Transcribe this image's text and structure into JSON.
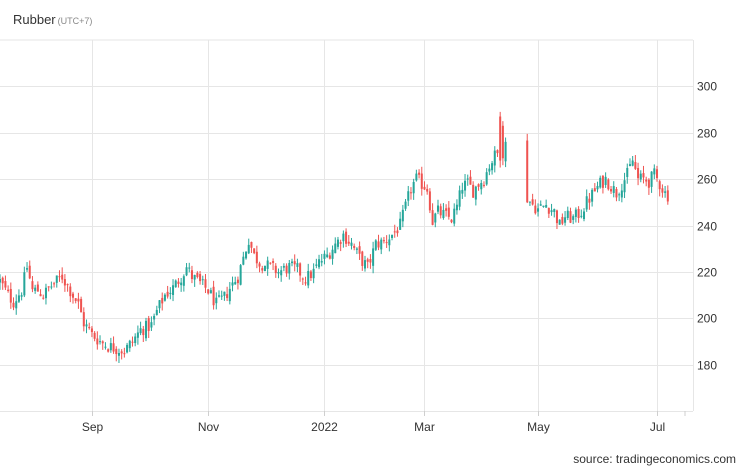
{
  "header": {
    "title": "Rubber",
    "timezone": "(UTC+7)"
  },
  "footer": {
    "source": "source: tradingeconomics.com"
  },
  "colors": {
    "up": "#26a69a",
    "down": "#ef5350",
    "grid": "#e6e6e6",
    "text": "#333333"
  },
  "chart_data": {
    "type": "candlestick",
    "title": "Rubber",
    "ylim": [
      160,
      320
    ],
    "y_ticks": [
      180,
      200,
      220,
      240,
      260,
      280,
      300
    ],
    "x_ticks": [
      {
        "label": "Sep",
        "idx": 34
      },
      {
        "label": "Nov",
        "idx": 77
      },
      {
        "label": "2022",
        "idx": 120
      },
      {
        "label": "Mar",
        "idx": 157
      },
      {
        "label": "May",
        "idx": 199
      },
      {
        "label": "Jul",
        "idx": 243
      }
    ],
    "n": 256,
    "gaps": [
      [
        187,
        195
      ]
    ],
    "anchors": [
      [
        0,
        216
      ],
      [
        3,
        210
      ],
      [
        5,
        207
      ],
      [
        8,
        212
      ],
      [
        10,
        222
      ],
      [
        12,
        212
      ],
      [
        14,
        212
      ],
      [
        16,
        210
      ],
      [
        19,
        214
      ],
      [
        23,
        218
      ],
      [
        27,
        210
      ],
      [
        29,
        206
      ],
      [
        31,
        198
      ],
      [
        34,
        193
      ],
      [
        37,
        190
      ],
      [
        40,
        188
      ],
      [
        43,
        187
      ],
      [
        46,
        186
      ],
      [
        49,
        190
      ],
      [
        52,
        195
      ],
      [
        56,
        197
      ],
      [
        58,
        203
      ],
      [
        61,
        210
      ],
      [
        64,
        213
      ],
      [
        67,
        218
      ],
      [
        69,
        222
      ],
      [
        71,
        218
      ],
      [
        73,
        216
      ],
      [
        77,
        212
      ],
      [
        80,
        206
      ],
      [
        83,
        209
      ],
      [
        85,
        213
      ],
      [
        88,
        218
      ],
      [
        90,
        226
      ],
      [
        92,
        234
      ],
      [
        94,
        227
      ],
      [
        96,
        224
      ],
      [
        100,
        222
      ],
      [
        103,
        220
      ],
      [
        107,
        222
      ],
      [
        110,
        221
      ],
      [
        113,
        217
      ],
      [
        116,
        220
      ],
      [
        118,
        224
      ],
      [
        121,
        227
      ],
      [
        124,
        232
      ],
      [
        127,
        236
      ],
      [
        130,
        232
      ],
      [
        133,
        226
      ],
      [
        136,
        222
      ],
      [
        139,
        232
      ],
      [
        142,
        233
      ],
      [
        145,
        236
      ],
      [
        148,
        240
      ],
      [
        150,
        248
      ],
      [
        152,
        256
      ],
      [
        154,
        260
      ],
      [
        156,
        258
      ],
      [
        158,
        256
      ],
      [
        160,
        242
      ],
      [
        162,
        246
      ],
      [
        165,
        244
      ],
      [
        167,
        243
      ],
      [
        169,
        248
      ],
      [
        171,
        257
      ],
      [
        173,
        258
      ],
      [
        175,
        255
      ],
      [
        177,
        258
      ],
      [
        179,
        260
      ],
      [
        181,
        266
      ],
      [
        183,
        270
      ],
      [
        185,
        272
      ],
      [
        186,
        275
      ],
      [
        187,
        275
      ],
      [
        190,
        268
      ],
      [
        195,
        252
      ],
      [
        197,
        249
      ],
      [
        199,
        247
      ],
      [
        202,
        249
      ],
      [
        205,
        246
      ],
      [
        207,
        240
      ],
      [
        209,
        244
      ],
      [
        212,
        243
      ],
      [
        215,
        246
      ],
      [
        217,
        250
      ],
      [
        220,
        255
      ],
      [
        222,
        258
      ],
      [
        224,
        260
      ],
      [
        226,
        257
      ],
      [
        228,
        254
      ],
      [
        230,
        258
      ],
      [
        232,
        262
      ],
      [
        234,
        268
      ],
      [
        236,
        260
      ],
      [
        238,
        260
      ],
      [
        240,
        259
      ],
      [
        242,
        262
      ],
      [
        244,
        258
      ],
      [
        246,
        254
      ],
      [
        247,
        253
      ]
    ],
    "spikes": [
      {
        "idx": 185,
        "high": 289,
        "low": 265
      },
      {
        "idx": 186,
        "high": 285,
        "low": 266
      }
    ]
  }
}
